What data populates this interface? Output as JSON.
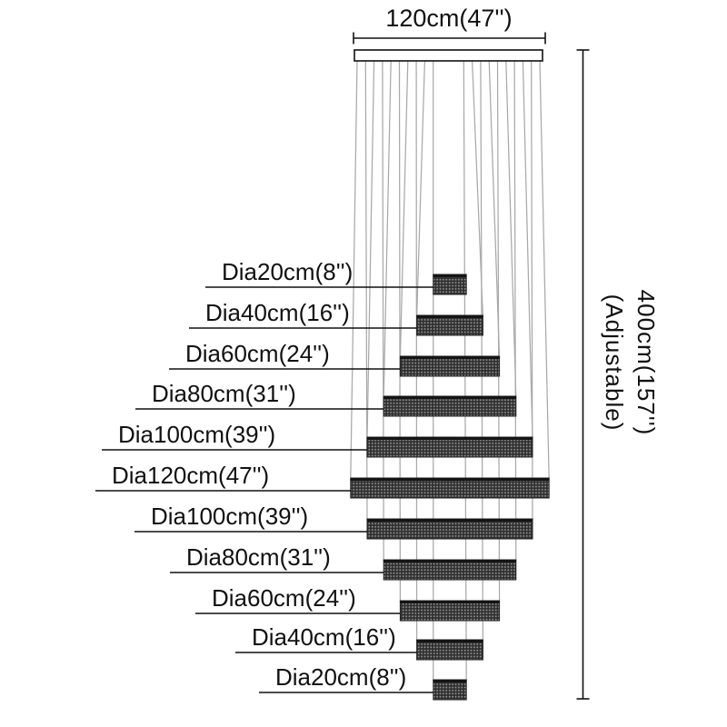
{
  "diagram": {
    "top_dimension_label": "120cm(47'')",
    "side_dimension": {
      "value": "400cm(157'')",
      "note": "(Adjustable)"
    },
    "tiers": [
      {
        "label": "Dia20cm(8'')",
        "diameter_cm": 20
      },
      {
        "label": "Dia40cm(16'')",
        "diameter_cm": 40
      },
      {
        "label": "Dia60cm(24'')",
        "diameter_cm": 60
      },
      {
        "label": "Dia80cm(31'')",
        "diameter_cm": 80
      },
      {
        "label": "Dia100cm(39'')",
        "diameter_cm": 100
      },
      {
        "label": "Dia120cm(47'')",
        "diameter_cm": 120
      },
      {
        "label": "Dia100cm(39'')",
        "diameter_cm": 100
      },
      {
        "label": "Dia80cm(31'')",
        "diameter_cm": 80
      },
      {
        "label": "Dia60cm(24'')",
        "diameter_cm": 60
      },
      {
        "label": "Dia40cm(16'')",
        "diameter_cm": 40
      },
      {
        "label": "Dia20cm(8'')",
        "diameter_cm": 20
      }
    ],
    "colors": {
      "line": "#111111",
      "wire": "#a9a9a9",
      "tier_base": "#2e2e2e",
      "tier_dot": "#949494",
      "tier_top_edge": "#141414",
      "tier_border": "#222222",
      "canopy_fill": "#ffffff",
      "background": "#ffffff",
      "text": "#111111"
    }
  }
}
